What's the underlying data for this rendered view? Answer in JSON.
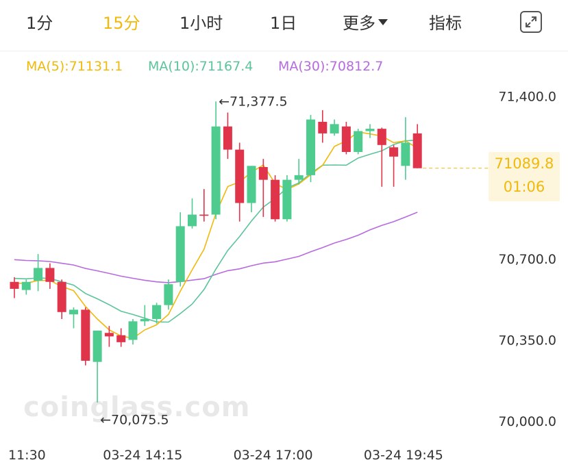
{
  "toolbar": {
    "tabs": [
      {
        "label": "1分",
        "active": false
      },
      {
        "label": "15分",
        "active": true
      },
      {
        "label": "1小时",
        "active": false
      },
      {
        "label": "1日",
        "active": false
      }
    ],
    "more_label": "更多",
    "indicator_label": "指标",
    "expand_icon": "expand-icon"
  },
  "ma": {
    "ma5": {
      "label": "MA(5):71131.1",
      "color": "#f0b90b"
    },
    "ma10": {
      "label": "MA(10):71167.4",
      "color": "#5cc49a"
    },
    "ma30": {
      "label": "MA(30):70812.7",
      "color": "#b76ae0"
    }
  },
  "colors": {
    "up": "#4ecb8e",
    "down": "#e0344b"
  },
  "watermark": "coinglass.com",
  "current": {
    "price": "71089.8",
    "countdown": "01:06",
    "value": 71089.8
  },
  "annotations": {
    "high": {
      "label": "←71,377.5",
      "value": 71377.5
    },
    "low": {
      "label": "←70,075.5",
      "value": 70075.5
    }
  },
  "chart_data": {
    "type": "candlestick",
    "y_ticks": [
      {
        "label": "71,400.0",
        "value": 71400
      },
      {
        "label": "70,700.0",
        "value": 70700
      },
      {
        "label": "70,350.0",
        "value": 70350
      },
      {
        "label": "70,000.0",
        "value": 70000
      }
    ],
    "x_ticks": [
      {
        "label": "11:30",
        "index": 0
      },
      {
        "label": "03-24 14:15",
        "index": 11
      },
      {
        "label": "03-24 17:00",
        "index": 22
      },
      {
        "label": "03-24 19:45",
        "index": 33
      }
    ],
    "ylim": [
      69950,
      71520
    ],
    "candles": [
      {
        "o": 70600,
        "h": 70620,
        "l": 70530,
        "c": 70570
      },
      {
        "o": 70565,
        "h": 70610,
        "l": 70545,
        "c": 70600
      },
      {
        "o": 70605,
        "h": 70720,
        "l": 70560,
        "c": 70660
      },
      {
        "o": 70660,
        "h": 70680,
        "l": 70570,
        "c": 70600
      },
      {
        "o": 70600,
        "h": 70610,
        "l": 70440,
        "c": 70470
      },
      {
        "o": 70460,
        "h": 70490,
        "l": 70400,
        "c": 70480
      },
      {
        "o": 70480,
        "h": 70490,
        "l": 70240,
        "c": 70260
      },
      {
        "o": 70255,
        "h": 70390,
        "l": 70080,
        "c": 70390
      },
      {
        "o": 70380,
        "h": 70410,
        "l": 70320,
        "c": 70365
      },
      {
        "o": 70370,
        "h": 70400,
        "l": 70320,
        "c": 70340
      },
      {
        "o": 70350,
        "h": 70440,
        "l": 70330,
        "c": 70430
      },
      {
        "o": 70430,
        "h": 70500,
        "l": 70410,
        "c": 70440
      },
      {
        "o": 70440,
        "h": 70510,
        "l": 70420,
        "c": 70500
      },
      {
        "o": 70500,
        "h": 70610,
        "l": 70480,
        "c": 70590
      },
      {
        "o": 70600,
        "h": 70900,
        "l": 70580,
        "c": 70840
      },
      {
        "o": 70840,
        "h": 70960,
        "l": 70830,
        "c": 70890
      },
      {
        "o": 70890,
        "h": 71000,
        "l": 70860,
        "c": 70885
      },
      {
        "o": 70890,
        "h": 71378,
        "l": 70870,
        "c": 71270
      },
      {
        "o": 71270,
        "h": 71330,
        "l": 71130,
        "c": 71170
      },
      {
        "o": 71170,
        "h": 71200,
        "l": 70860,
        "c": 70940
      },
      {
        "o": 70940,
        "h": 71100,
        "l": 70900,
        "c": 71100
      },
      {
        "o": 71095,
        "h": 71130,
        "l": 70880,
        "c": 71040
      },
      {
        "o": 71040,
        "h": 71060,
        "l": 70860,
        "c": 70870
      },
      {
        "o": 70870,
        "h": 71060,
        "l": 70860,
        "c": 71040
      },
      {
        "o": 71040,
        "h": 71130,
        "l": 71020,
        "c": 71060
      },
      {
        "o": 71060,
        "h": 71320,
        "l": 71030,
        "c": 71300
      },
      {
        "o": 71290,
        "h": 71340,
        "l": 71200,
        "c": 71240
      },
      {
        "o": 71240,
        "h": 71300,
        "l": 71230,
        "c": 71280
      },
      {
        "o": 71270,
        "h": 71290,
        "l": 71150,
        "c": 71160
      },
      {
        "o": 71160,
        "h": 71260,
        "l": 71150,
        "c": 71250
      },
      {
        "o": 71250,
        "h": 71280,
        "l": 71220,
        "c": 71260
      },
      {
        "o": 71260,
        "h": 71265,
        "l": 71010,
        "c": 71190
      },
      {
        "o": 71180,
        "h": 71190,
        "l": 71010,
        "c": 71140
      },
      {
        "o": 71100,
        "h": 71310,
        "l": 71040,
        "c": 71200
      },
      {
        "o": 71240,
        "h": 71280,
        "l": 71090,
        "c": 71090
      }
    ]
  }
}
